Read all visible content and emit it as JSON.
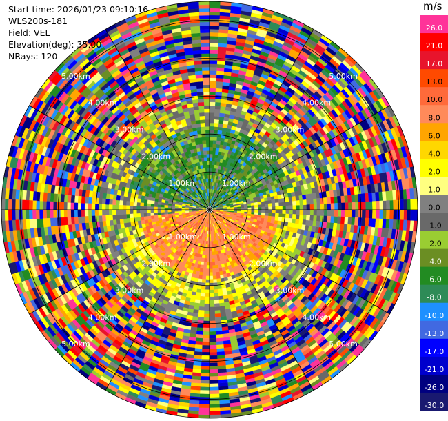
{
  "info": {
    "start_time": "Start time: 2026/01/23 09:10:16",
    "device": "WLS200s-181",
    "field": "Field: VEL",
    "elevation": "Elevation(deg): 35.00",
    "nrays": "NRays: 120"
  },
  "colorbar": {
    "unit": "m/s",
    "levels": [
      {
        "label": "26.0",
        "color": "#ff3399"
      },
      {
        "label": "21.0",
        "color": "#ff0000"
      },
      {
        "label": "17.0",
        "color": "#e8142c"
      },
      {
        "label": "13.0",
        "color": "#ff4a00"
      },
      {
        "label": "10.0",
        "color": "#ff6a3a"
      },
      {
        "label": "8.0",
        "color": "#ff8a5a"
      },
      {
        "label": "6.0",
        "color": "#ffa500"
      },
      {
        "label": "4.0",
        "color": "#ffd700"
      },
      {
        "label": "2.0",
        "color": "#ffff00"
      },
      {
        "label": "1.0",
        "color": "#ffff80"
      },
      {
        "label": "0.0",
        "color": "#808080"
      },
      {
        "label": "-1.0",
        "color": "#696969"
      },
      {
        "label": "-2.0",
        "color": "#9acd32"
      },
      {
        "label": "-4.0",
        "color": "#6b8e23"
      },
      {
        "label": "-6.0",
        "color": "#228b22"
      },
      {
        "label": "-8.0",
        "color": "#2e8b57"
      },
      {
        "label": "-10.0",
        "color": "#1e90ff"
      },
      {
        "label": "-13.0",
        "color": "#4169e1"
      },
      {
        "label": "-17.0",
        "color": "#0000ff"
      },
      {
        "label": "-21.0",
        "color": "#0000cd"
      },
      {
        "label": "-26.0",
        "color": "#000080"
      },
      {
        "label": "-30.0",
        "color": "#191970"
      }
    ]
  },
  "chart_data": {
    "type": "heatmap",
    "projection": "polar-ppi",
    "field": "VEL",
    "elevation_deg": 35.0,
    "nrays": 120,
    "range_max_km": 5.5,
    "range_rings_km": [
      1.0,
      2.0,
      3.0,
      4.0,
      5.0
    ],
    "ring_labels": [
      {
        "text": "1.00km",
        "range_km": 1.0
      },
      {
        "text": "2.00km",
        "range_km": 2.0
      },
      {
        "text": "3.00km",
        "range_km": 3.0
      },
      {
        "text": "4.00km",
        "range_km": 4.0
      },
      {
        "text": "5.00km",
        "range_km": 5.0
      }
    ],
    "value_range": [
      -30.0,
      26.0
    ],
    "unit": "m/s",
    "regions": [
      {
        "sector": "north (az 300-60)",
        "range_km": [
          0,
          2.2
        ],
        "velocity": "negative, about -4 to -8 (greens)"
      },
      {
        "sector": "south (az 100-260)",
        "range_km": [
          0,
          1.8
        ],
        "velocity": "positive, about 6 to 10 (oranges)"
      },
      {
        "sector": "south ring",
        "range_km": [
          1.5,
          2.5
        ],
        "velocity": "about 1 to 4 (yellows)"
      },
      {
        "sector": "all",
        "range_km": [
          2.5,
          5.5
        ],
        "velocity": "noise, all colour levels"
      }
    ]
  }
}
